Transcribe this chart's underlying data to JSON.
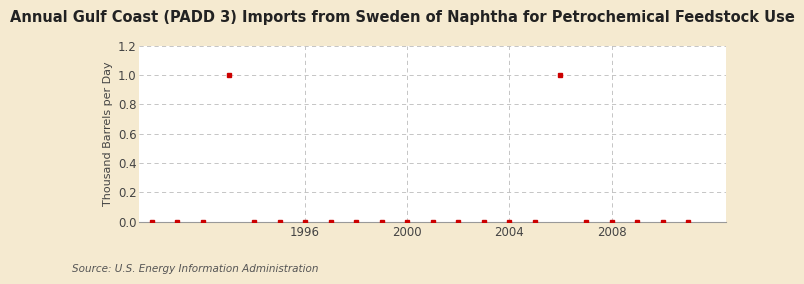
{
  "title": "Annual Gulf Coast (PADD 3) Imports from Sweden of Naphtha for Petrochemical Feedstock Use",
  "ylabel": "Thousand Barrels per Day",
  "source": "Source: U.S. Energy Information Administration",
  "outer_bg": "#f5ead0",
  "inner_bg": "#ffffff",
  "years": [
    1990,
    1991,
    1992,
    1993,
    1994,
    1995,
    1996,
    1997,
    1998,
    1999,
    2000,
    2001,
    2002,
    2003,
    2004,
    2005,
    2006,
    2007,
    2008,
    2009,
    2010,
    2011
  ],
  "values": [
    0,
    0,
    0,
    1,
    0,
    0,
    0,
    0,
    0,
    0,
    0,
    0,
    0,
    0,
    0,
    0,
    1,
    0,
    0,
    0,
    0,
    0
  ],
  "marker_color": "#cc0000",
  "xlim": [
    1989.5,
    2012.5
  ],
  "ylim": [
    0,
    1.2
  ],
  "yticks": [
    0.0,
    0.2,
    0.4,
    0.6,
    0.8,
    1.0,
    1.2
  ],
  "xticks": [
    1996,
    2000,
    2004,
    2008
  ],
  "grid_color": "#bbbbbb",
  "title_fontsize": 10.5,
  "axis_fontsize": 8.5,
  "source_fontsize": 7.5,
  "ylabel_fontsize": 8
}
